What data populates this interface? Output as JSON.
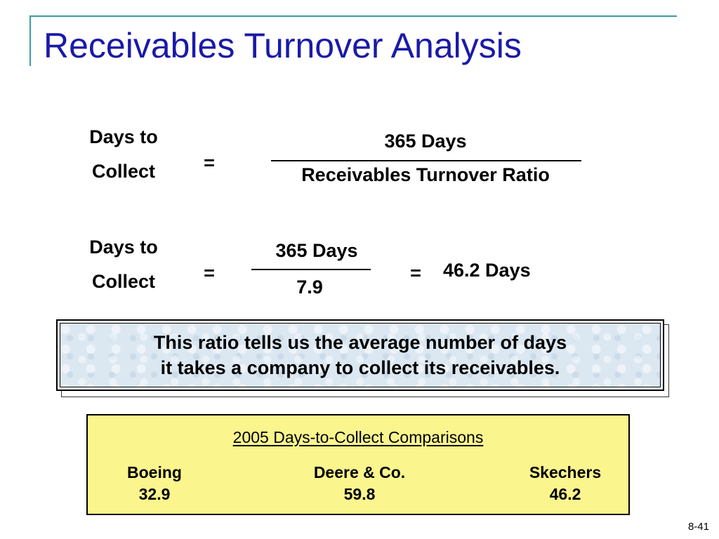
{
  "title": "Receivables Turnover Analysis",
  "formula": {
    "lhs_line1": "Days to",
    "lhs_line2": "Collect",
    "equals": "=",
    "numerator": "365 Days",
    "denominator": "Receivables Turnover Ratio"
  },
  "calculation": {
    "lhs_line1": "Days to",
    "lhs_line2": "Collect",
    "equals": "=",
    "numerator": "365 Days",
    "denominator": "7.9",
    "equals2": "=",
    "result": "46.2 Days"
  },
  "note": {
    "line1": "This ratio tells us the average number of days",
    "line2": "it takes a company to collect its receivables."
  },
  "comparison": {
    "title": "2005 Days-to-Collect Comparisons",
    "companies": [
      {
        "name": "Boeing",
        "value": "32.9"
      },
      {
        "name": "Deere & Co.",
        "value": "59.8"
      },
      {
        "name": "Skechers",
        "value": "46.2"
      }
    ]
  },
  "page_number": "8-41",
  "colors": {
    "title": "#1a1aa8",
    "frame": "#3a9aa6",
    "note_background": "#dbe7f1",
    "comparison_background": "#fbf58e"
  }
}
